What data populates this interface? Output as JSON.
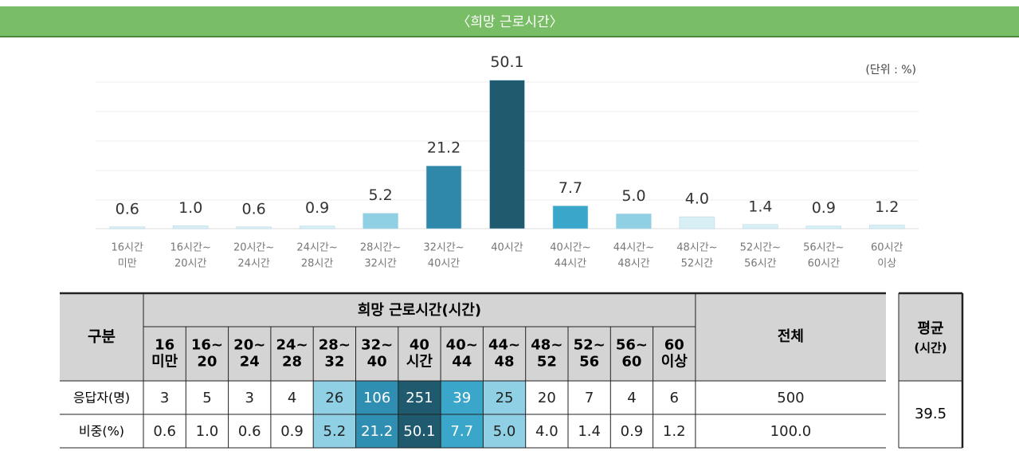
{
  "chart_data": {
    "type": "bar",
    "title": "〈희망 근로시간〉",
    "unit": "(단위 : %)",
    "categories": [
      [
        "16시간",
        "미만"
      ],
      [
        "16시간~",
        "20시간"
      ],
      [
        "20시간~",
        "24시간"
      ],
      [
        "24시간~",
        "28시간"
      ],
      [
        "28시간~",
        "32시간"
      ],
      [
        "32시간~",
        "40시간"
      ],
      [
        "40시간"
      ],
      [
        "40시간~",
        "44시간"
      ],
      [
        "44시간~",
        "48시간"
      ],
      [
        "48시간~",
        "52시간"
      ],
      [
        "52시간~",
        "56시간"
      ],
      [
        "56시간~",
        "60시간"
      ],
      [
        "60시간",
        "이상"
      ]
    ],
    "values": [
      0.6,
      1.0,
      0.6,
      0.9,
      5.2,
      21.2,
      50.1,
      7.7,
      5.0,
      4.0,
      1.4,
      0.9,
      1.2
    ],
    "value_labels": [
      "0.6",
      "1.0",
      "0.6",
      "0.9",
      "5.2",
      "21.2",
      "50.1",
      "7.7",
      "5.0",
      "4.0",
      "1.4",
      "0.9",
      "1.2"
    ],
    "colors": [
      "#d9eff6",
      "#d9eff6",
      "#d9eff6",
      "#d9eff6",
      "#8fd0e4",
      "#2f87aa",
      "#1f5a6e",
      "#3aa6c9",
      "#8fd0e4",
      "#d9eff6",
      "#d9eff6",
      "#d9eff6",
      "#d9eff6"
    ],
    "ylim": [
      0,
      50
    ]
  },
  "table": {
    "corner": "구분",
    "group": "희망 근로시간(시간)",
    "columns": [
      [
        "16",
        "미만"
      ],
      [
        "16~",
        "20"
      ],
      [
        "20~",
        "24"
      ],
      [
        "24~",
        "28"
      ],
      [
        "28~",
        "32"
      ],
      [
        "32~",
        "40"
      ],
      [
        "40",
        "시간"
      ],
      [
        "40~",
        "44"
      ],
      [
        "44~",
        "48"
      ],
      [
        "48~",
        "52"
      ],
      [
        "52~",
        "56"
      ],
      [
        "56~",
        "60"
      ],
      [
        "60",
        "이상"
      ],
      [
        "전체"
      ]
    ],
    "highlight": [
      null,
      null,
      null,
      null,
      "#8fd0e4",
      "#2f8fb2",
      "#1f5a6e",
      "#3aa6c9",
      "#8fd0e4",
      null,
      null,
      null,
      null,
      null
    ],
    "rows": [
      {
        "label": "응답자(명)",
        "cells": [
          "3",
          "5",
          "3",
          "4",
          "26",
          "106",
          "251",
          "39",
          "25",
          "20",
          "7",
          "4",
          "6",
          "500"
        ]
      },
      {
        "label": "비중(%)",
        "cells": [
          "0.6",
          "1.0",
          "0.6",
          "0.9",
          "5.2",
          "21.2",
          "50.1",
          "7.7",
          "5.0",
          "4.0",
          "1.4",
          "0.9",
          "1.2",
          "100.0"
        ]
      }
    ],
    "average_header": [
      "평균",
      "(시간)"
    ],
    "average": "39.5"
  }
}
